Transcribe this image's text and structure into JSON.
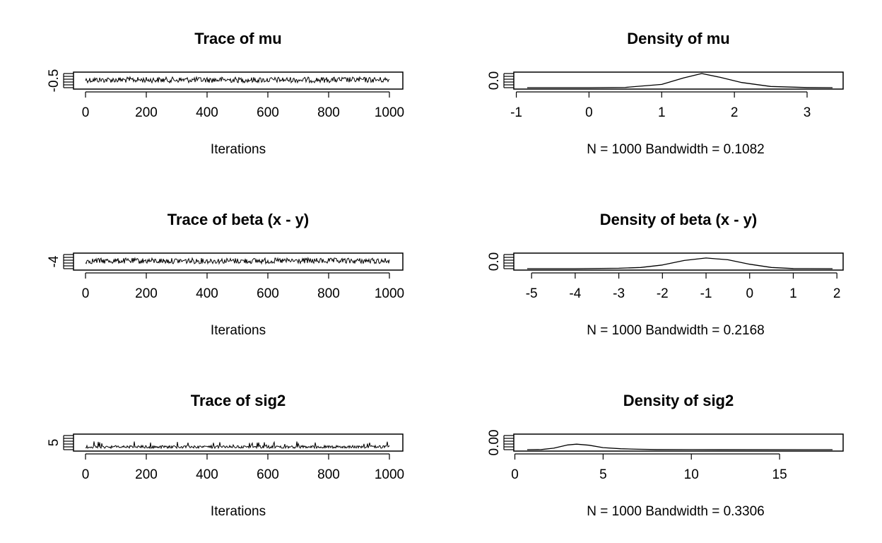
{
  "chart_data": [
    {
      "type": "line",
      "title": "Trace of mu",
      "xlabel": "Iterations",
      "x_ticks": [
        "0",
        "200",
        "400",
        "600",
        "800",
        "1000"
      ],
      "y_ticks": [
        "-0.5"
      ],
      "xlim": [
        0,
        1000
      ],
      "series": [
        {
          "values_summary": "MCMC trace, 1000 iterations, roughly stationary"
        }
      ]
    },
    {
      "type": "area",
      "title": "Density of mu",
      "xlabel": "N = 1000   Bandwidth = 0.1082",
      "x_ticks": [
        "-1",
        "0",
        "1",
        "2",
        "3"
      ],
      "y_ticks": [
        "0.0"
      ],
      "xlim": [
        -0.85,
        3.35
      ],
      "x": [
        -0.85,
        0,
        0.5,
        1.0,
        1.3,
        1.55,
        1.8,
        2.1,
        2.5,
        3.0,
        3.35
      ],
      "values": [
        0.0,
        0.0,
        0.02,
        0.22,
        0.65,
        0.95,
        0.7,
        0.35,
        0.08,
        0.01,
        0.0
      ]
    },
    {
      "type": "line",
      "title": "Trace of beta (x - y)",
      "xlabel": "Iterations",
      "x_ticks": [
        "0",
        "200",
        "400",
        "600",
        "800",
        "1000"
      ],
      "y_ticks": [
        "-4"
      ],
      "xlim": [
        0,
        1000
      ],
      "series": [
        {
          "values_summary": "MCMC trace, 1000 iterations, roughly stationary"
        }
      ]
    },
    {
      "type": "area",
      "title": "Density of beta (x - y)",
      "xlabel": "N = 1000   Bandwidth = 0.2168",
      "x_ticks": [
        "-5",
        "-4",
        "-3",
        "-2",
        "-1",
        "0",
        "1",
        "2"
      ],
      "y_ticks": [
        "0.0"
      ],
      "xlim": [
        -5.1,
        1.9
      ],
      "x": [
        -5.1,
        -4,
        -3,
        -2.5,
        -2,
        -1.5,
        -1,
        -0.5,
        0,
        0.5,
        1,
        1.9
      ],
      "values": [
        0.0,
        0.0,
        0.03,
        0.08,
        0.25,
        0.55,
        0.72,
        0.6,
        0.3,
        0.08,
        0.01,
        0.0
      ]
    },
    {
      "type": "line",
      "title": "Trace of sig2",
      "xlabel": "Iterations",
      "x_ticks": [
        "0",
        "200",
        "400",
        "600",
        "800",
        "1000"
      ],
      "y_ticks": [
        "5"
      ],
      "xlim": [
        0,
        1000
      ],
      "series": [
        {
          "values_summary": "MCMC trace, 1000 iterations, low with occasional spikes"
        }
      ]
    },
    {
      "type": "area",
      "title": "Density of sig2",
      "xlabel": "N = 1000   Bandwidth = 0.3306",
      "x_ticks": [
        "0",
        "5",
        "10",
        "15"
      ],
      "y_ticks": [
        "0.00"
      ],
      "xlim": [
        0.7,
        18
      ],
      "x": [
        0.7,
        1.5,
        2.2,
        3.0,
        3.5,
        4.2,
        5.0,
        6.0,
        7.0,
        8.0,
        10.0,
        18.0
      ],
      "values": [
        0.0,
        0.01,
        0.1,
        0.32,
        0.37,
        0.3,
        0.14,
        0.06,
        0.03,
        0.01,
        0.003,
        0.0
      ]
    }
  ]
}
